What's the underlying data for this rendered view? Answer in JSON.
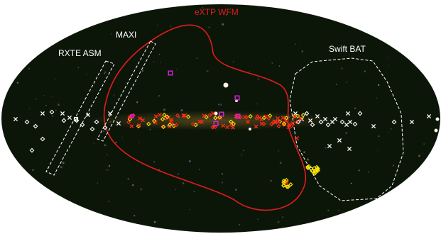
{
  "labels": {
    "wfm": "eXTP WFM",
    "maxi": "MAXI",
    "rxte": "RXTE ASM",
    "swift": "Swift BAT"
  },
  "colors": {
    "background": "#ffffff",
    "sky": "#0b1609",
    "wfm_contour": "#e21b1b",
    "fov_outline": "#ffffff",
    "wfm_label": "#e21b1b",
    "label": "#ffffff",
    "marker_red": "#ff2a1a",
    "marker_yellow": "#ffe600",
    "marker_white": "#ffffff",
    "marker_magenta": "#e020e0"
  }
}
